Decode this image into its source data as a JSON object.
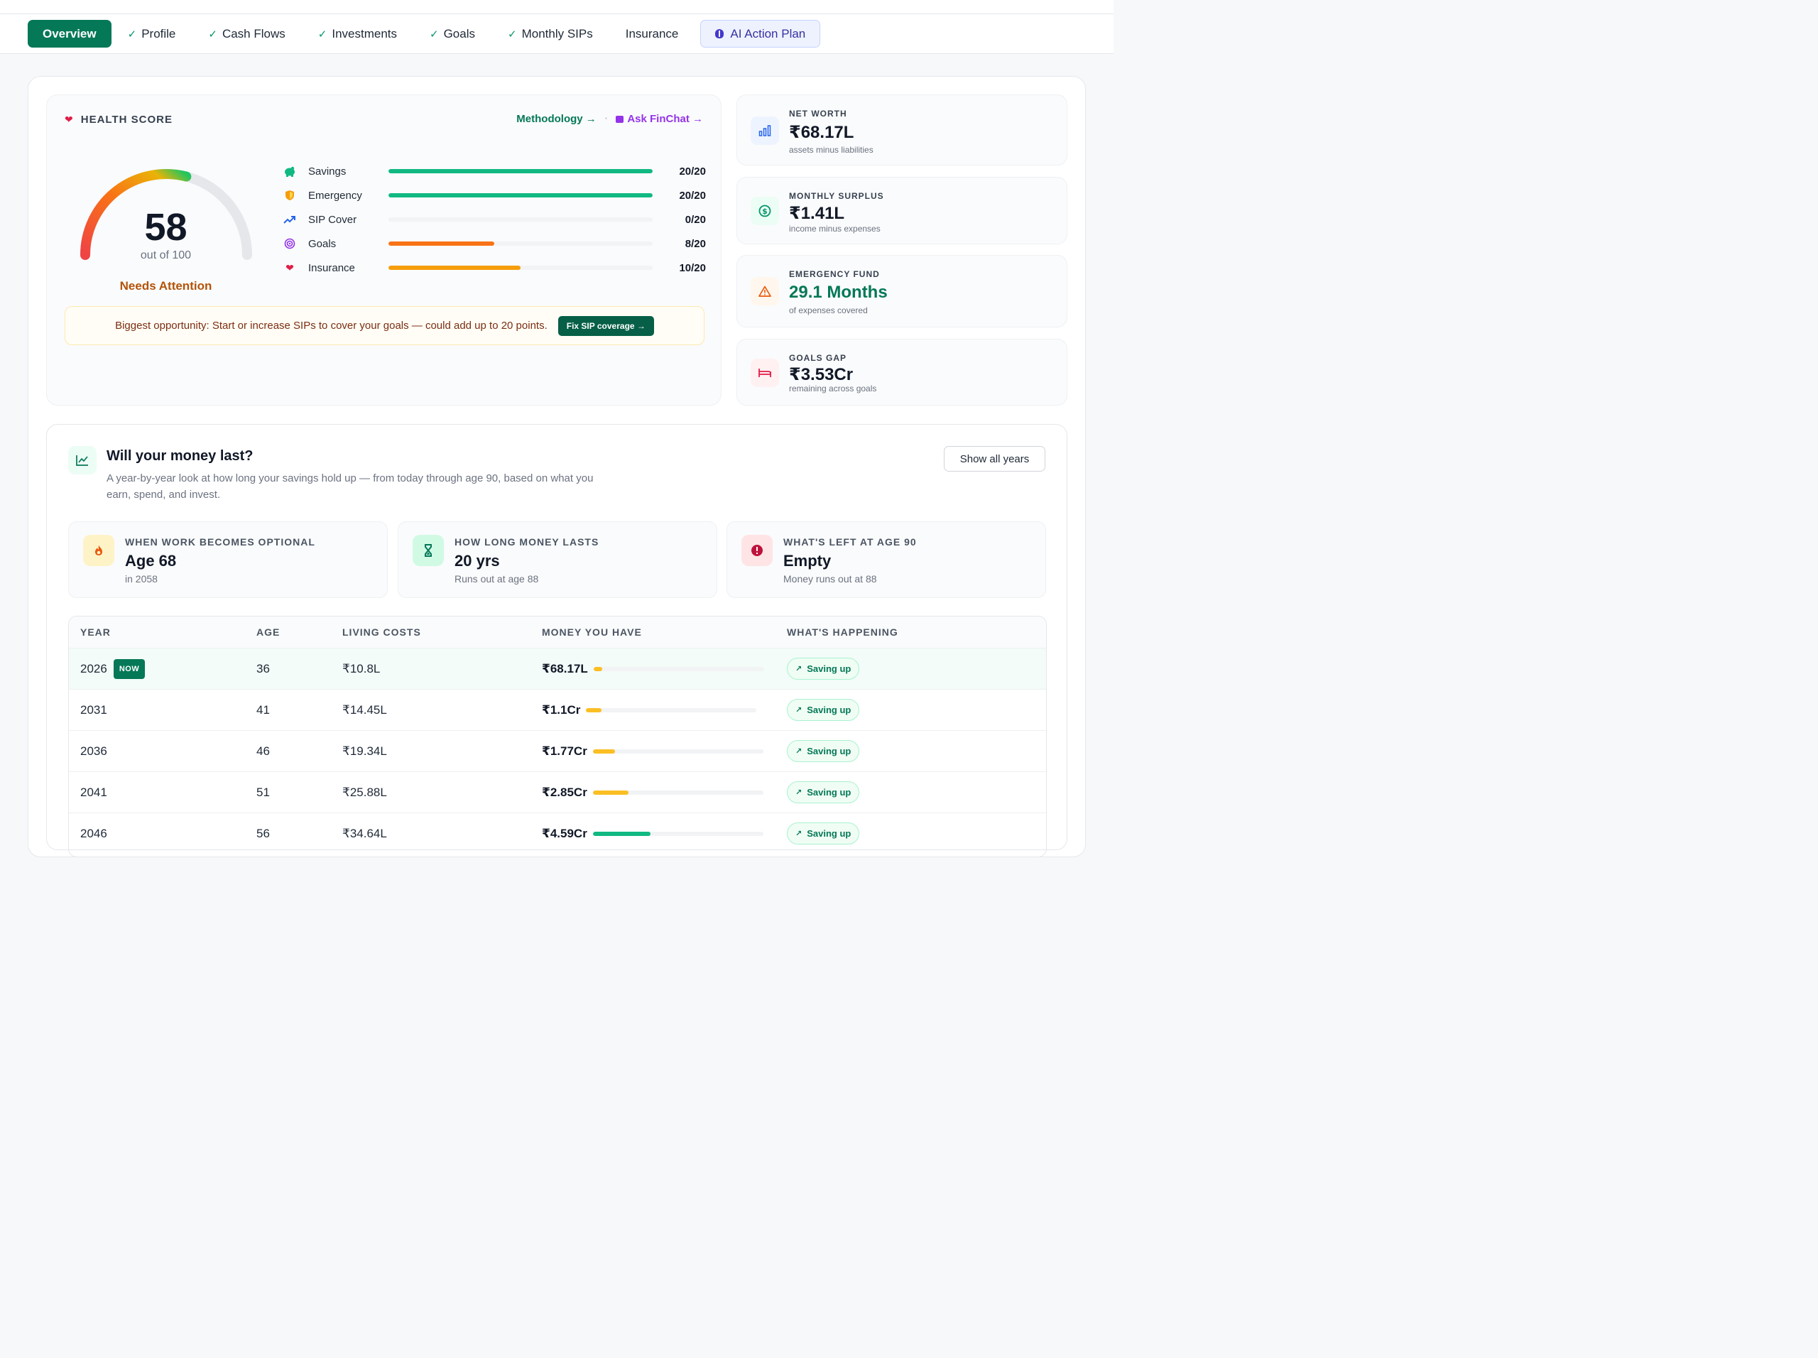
{
  "nav": {
    "tabs": [
      {
        "label": "Overview",
        "state": "active"
      },
      {
        "label": "Profile",
        "state": "done"
      },
      {
        "label": "Cash Flows",
        "state": "done"
      },
      {
        "label": "Investments",
        "state": "done"
      },
      {
        "label": "Goals",
        "state": "done"
      },
      {
        "label": "Monthly SIPs",
        "state": "done"
      },
      {
        "label": "Insurance",
        "state": "plain"
      },
      {
        "label": "AI Action Plan",
        "state": "ai"
      }
    ]
  },
  "health": {
    "title": "HEALTH SCORE",
    "methodology": "Methodology →",
    "ask": "Ask FinChat →",
    "score": "58",
    "score_of": "out of 100",
    "status": "Needs Attention",
    "score_value": 58,
    "metrics": [
      {
        "label": "Savings",
        "value": "20/20",
        "fraction": 1.0,
        "color": "#10b981",
        "icon": "piggy-bank-icon"
      },
      {
        "label": "Emergency",
        "value": "20/20",
        "fraction": 1.0,
        "color": "#10b981",
        "icon": "shield-icon"
      },
      {
        "label": "SIP Cover",
        "value": "0/20",
        "fraction": 0.0,
        "color": "#10b981",
        "icon": "trending-up-icon"
      },
      {
        "label": "Goals",
        "value": "8/20",
        "fraction": 0.4,
        "color": "#f97316",
        "icon": "target-icon"
      },
      {
        "label": "Insurance",
        "value": "10/20",
        "fraction": 0.5,
        "color": "#f59e0b",
        "icon": "heart-icon"
      }
    ],
    "opportunity": "Biggest opportunity: Start or increase SIPs to cover your goals — could add up to 20 points.",
    "opportunity_btn": "Fix SIP coverage →"
  },
  "kpis": [
    {
      "label": "NET WORTH",
      "value": "₹68.17L",
      "sub": "assets minus liabilities",
      "icon": "bar-chart-icon",
      "accent": "#2563eb"
    },
    {
      "label": "MONTHLY SURPLUS",
      "value": "₹1.41L",
      "sub": "income minus expenses",
      "icon": "dollar-circle-icon",
      "accent": "#059669"
    },
    {
      "label": "EMERGENCY FUND",
      "value": "29.1 Months",
      "sub": "of expenses covered",
      "icon": "warning-icon",
      "accent": "#ea580c"
    },
    {
      "label": "GOALS GAP",
      "value": "₹3.53Cr",
      "sub": "remaining across goals",
      "icon": "bed-icon",
      "accent": "#e11d48"
    }
  ],
  "money": {
    "title": "Will your money last?",
    "desc": "A year-by-year look at how long your savings hold up — from today through age 90, based on what you earn, spend, and invest.",
    "show_all": "Show all years",
    "stats": [
      {
        "label": "WHEN WORK BECOMES OPTIONAL",
        "value": "Age 68",
        "sub": "in 2058",
        "icon": "fire-icon"
      },
      {
        "label": "HOW LONG MONEY LASTS",
        "value": "20 yrs",
        "sub": "Runs out at age 88",
        "icon": "hourglass-icon"
      },
      {
        "label": "WHAT'S LEFT AT AGE 90",
        "value": "Empty",
        "sub": "Money runs out at 88",
        "icon": "alert-circle-icon"
      }
    ],
    "columns": [
      "YEAR",
      "AGE",
      "LIVING COSTS",
      "MONEY YOU HAVE",
      "WHAT'S HAPPENING"
    ],
    "now_badge": "NOW",
    "rows": [
      {
        "year": "2026",
        "age": "36",
        "cost": "₹10.8L",
        "money": "₹68.17L",
        "fill": 0.05,
        "color": "#fbbf24",
        "status": "Saving up",
        "current": true
      },
      {
        "year": "2031",
        "age": "41",
        "cost": "₹14.45L",
        "money": "₹1.1Cr",
        "fill": 0.09,
        "color": "#fbbf24",
        "status": "Saving up",
        "current": false
      },
      {
        "year": "2036",
        "age": "46",
        "cost": "₹19.34L",
        "money": "₹1.77Cr",
        "fill": 0.13,
        "color": "#fbbf24",
        "status": "Saving up",
        "current": false
      },
      {
        "year": "2041",
        "age": "51",
        "cost": "₹25.88L",
        "money": "₹2.85Cr",
        "fill": 0.21,
        "color": "#fbbf24",
        "status": "Saving up",
        "current": false
      },
      {
        "year": "2046",
        "age": "56",
        "cost": "₹34.64L",
        "money": "₹4.59Cr",
        "fill": 0.34,
        "color": "#10b981",
        "status": "Saving up",
        "current": false
      }
    ]
  }
}
